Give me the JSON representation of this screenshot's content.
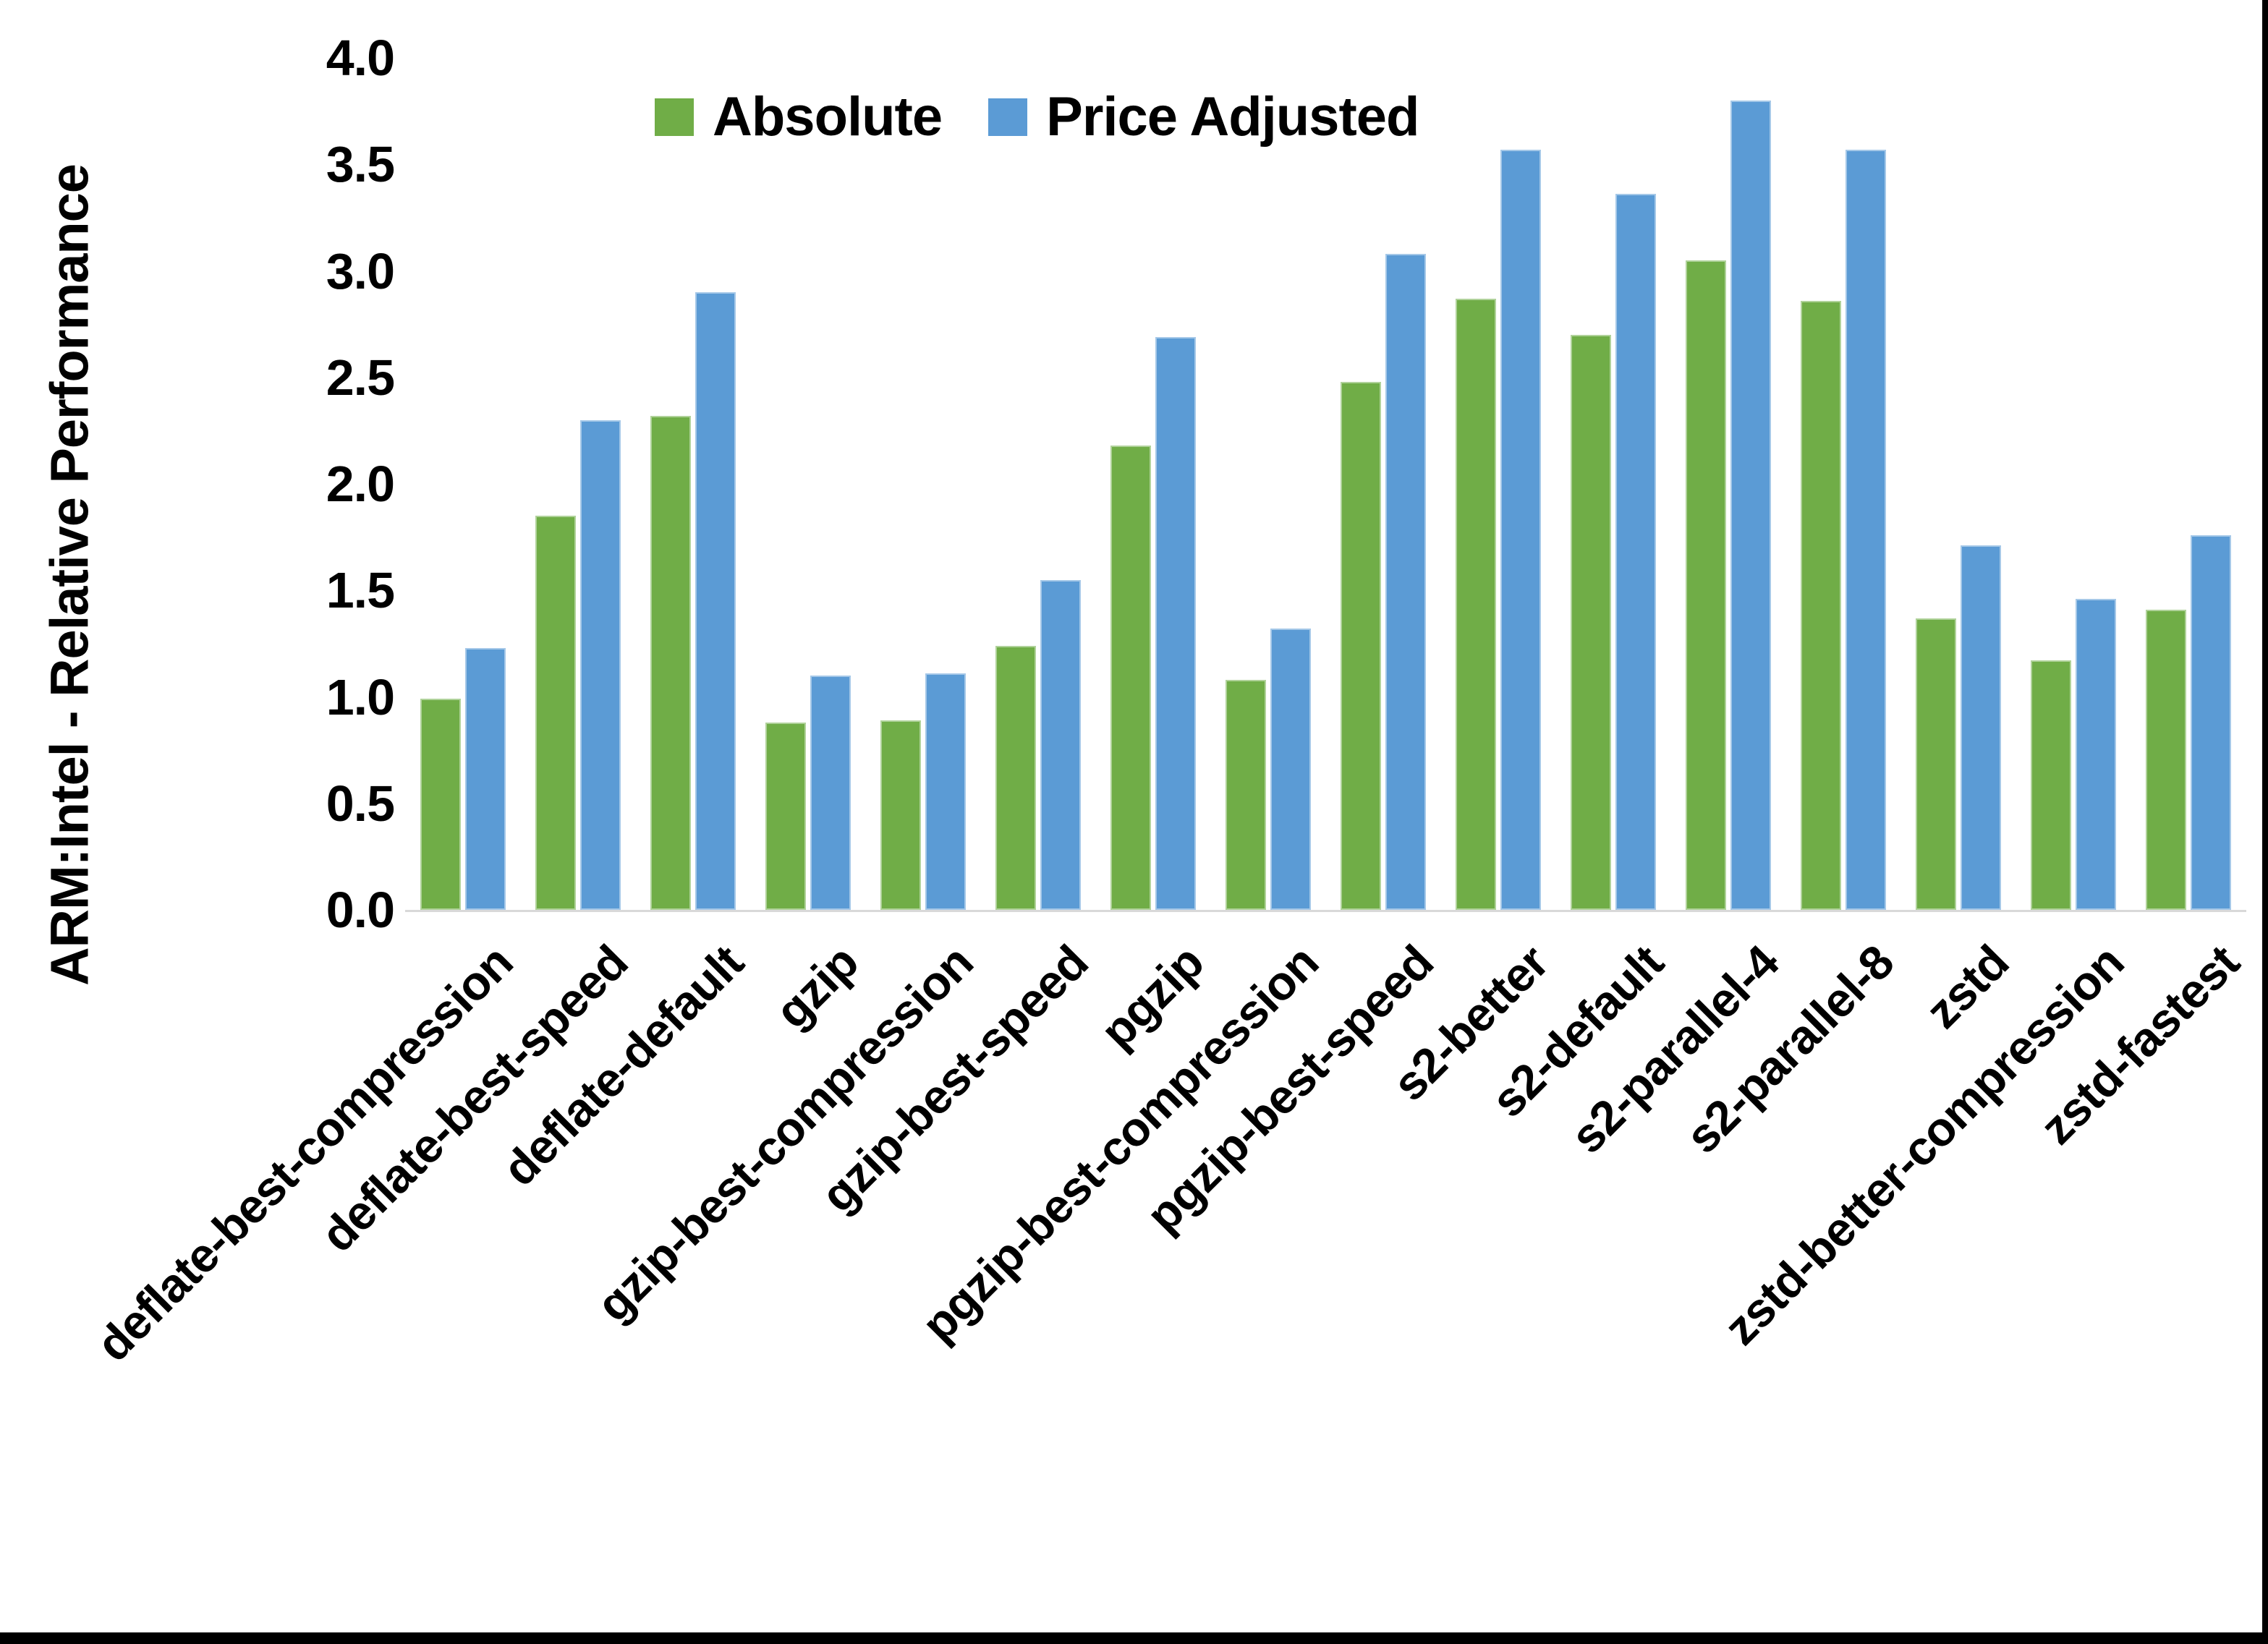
{
  "page": {
    "background": "#ffffff",
    "window_border_color": "#000000"
  },
  "legend": {
    "items": [
      {
        "label": "Absolute",
        "color": "#70AD47"
      },
      {
        "label": "Price Adjusted",
        "color": "#5B9BD5"
      }
    ]
  },
  "chart_data": {
    "type": "bar",
    "title": "",
    "xlabel": "",
    "ylabel": "ARM:Intel - Relative Performance",
    "ylim": [
      0,
      4
    ],
    "ytick_step": 0.5,
    "ytick_decimals": 1,
    "grid": false,
    "legend_position": "top-inside-left",
    "axis_line_color": "#d9d9d9",
    "categories": [
      "deflate-best-compression",
      "deflate-best-speed",
      "deflate-default",
      "gzip",
      "gzip-best-compression",
      "gzip-best-speed",
      "pgzip",
      "pgzip-best-compression",
      "pgzip-best-speed",
      "s2-better",
      "s2-default",
      "s2-parallel-4",
      "s2-parallel-8",
      "zstd",
      "zstd-better-compression",
      "zstd-fastest"
    ],
    "series": [
      {
        "name": "Absolute",
        "color": "#70AD47",
        "values": [
          0.99,
          1.85,
          2.32,
          0.88,
          0.89,
          1.24,
          2.18,
          1.08,
          2.48,
          2.87,
          2.7,
          3.05,
          2.86,
          1.37,
          1.17,
          1.41
        ]
      },
      {
        "name": "Price Adjusted",
        "color": "#5B9BD5",
        "values": [
          1.23,
          2.3,
          2.9,
          1.1,
          1.11,
          1.55,
          2.69,
          1.32,
          3.08,
          3.57,
          3.36,
          3.8,
          3.57,
          1.71,
          1.46,
          1.76
        ]
      }
    ]
  }
}
